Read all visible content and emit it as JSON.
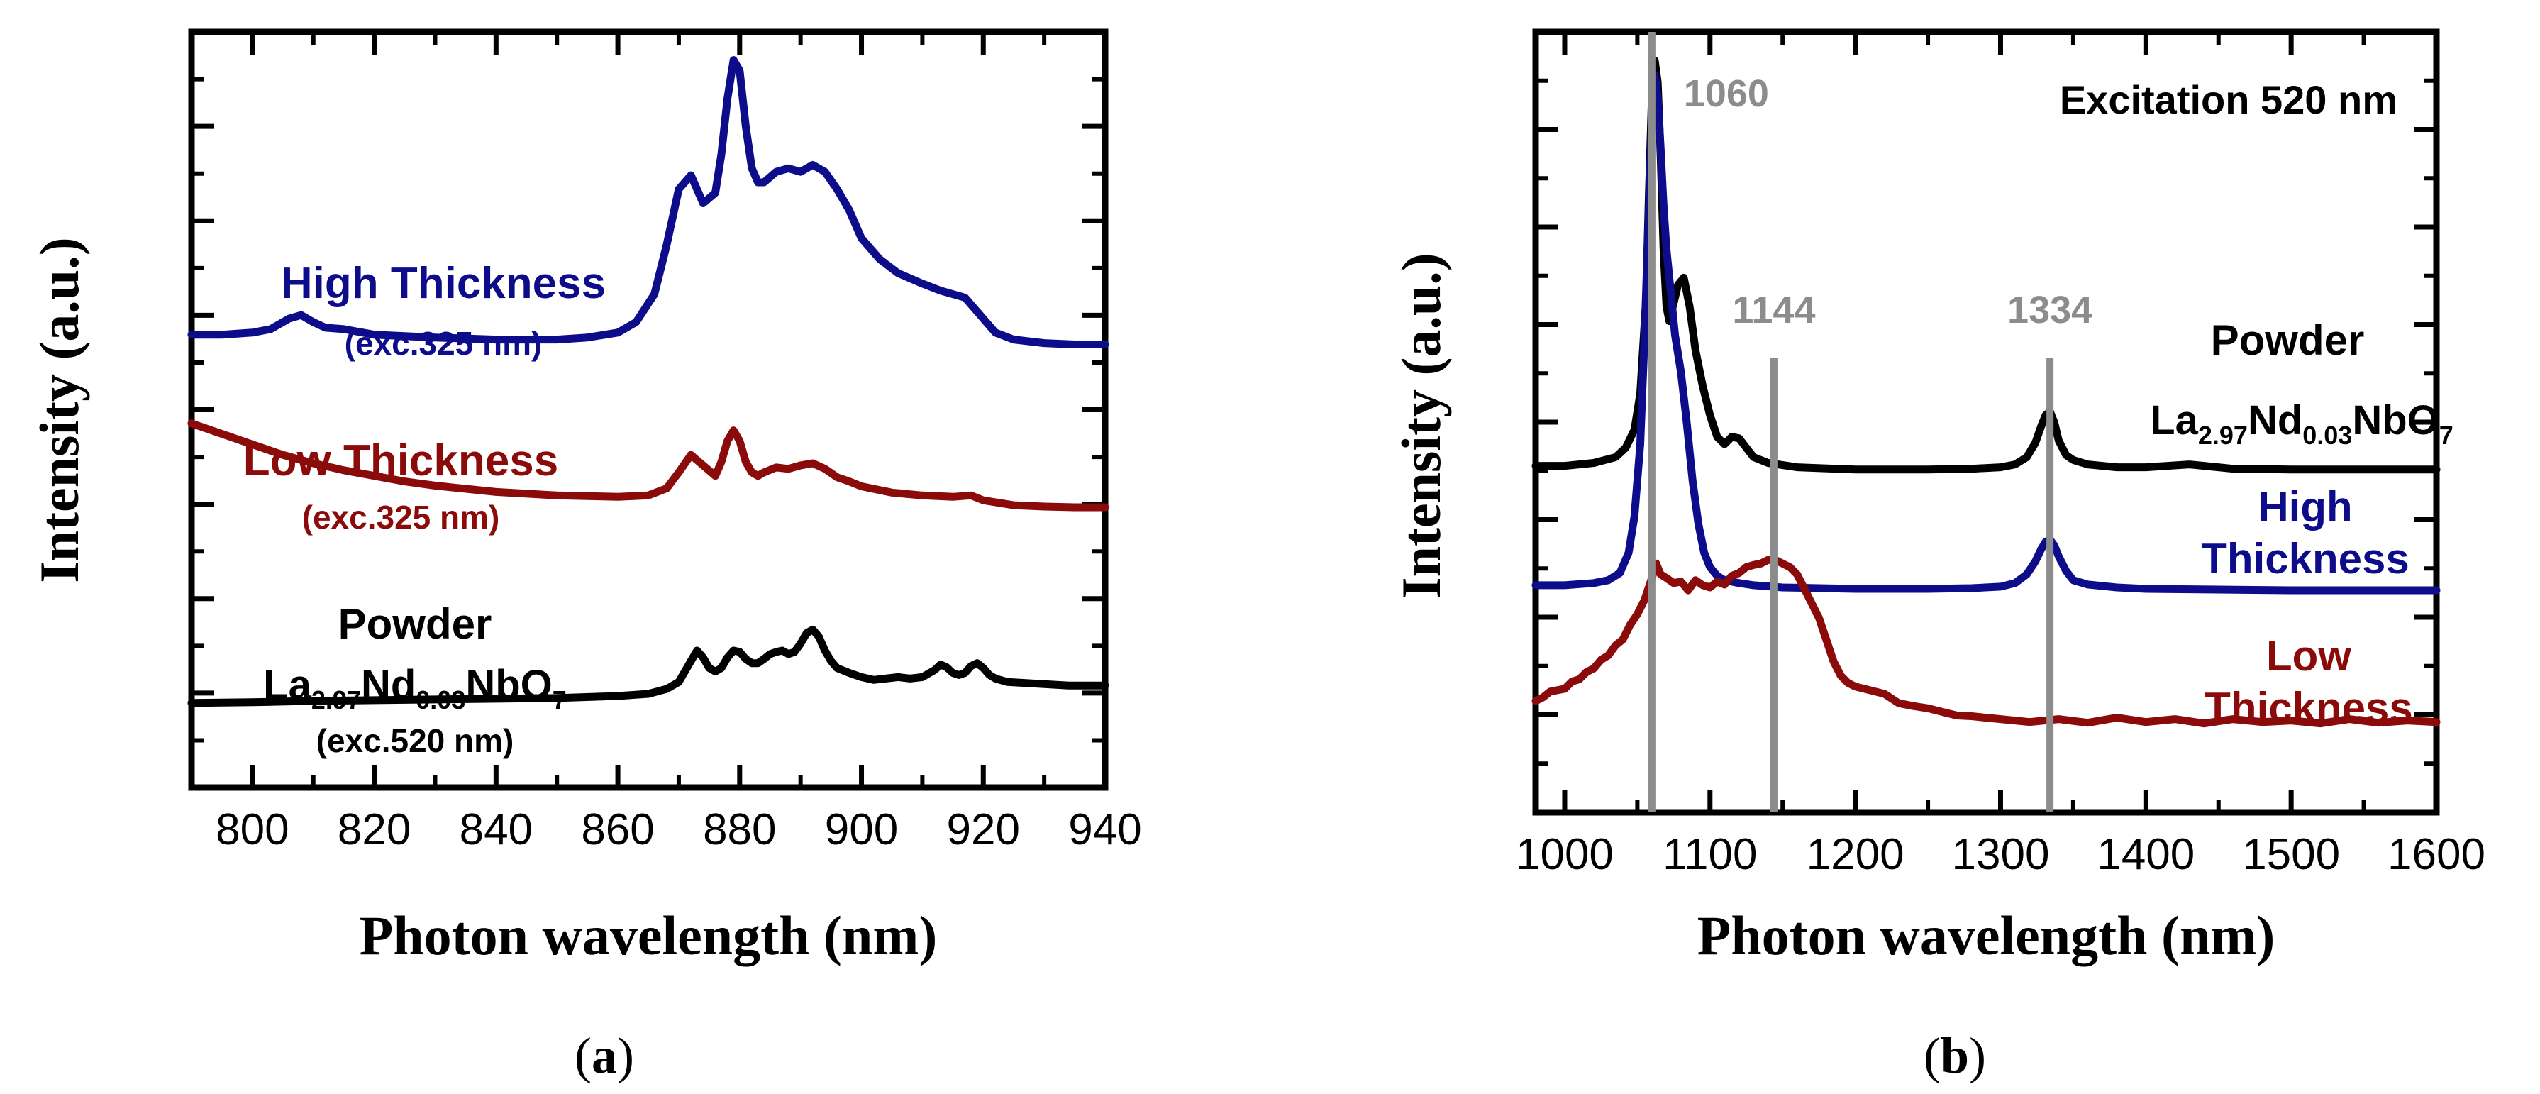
{
  "colors": {
    "high": "#0d0d8c",
    "low": "#8b0a0a",
    "powder": "#000000",
    "ref": "#8c8c8c"
  },
  "chart_data": [
    {
      "panel": "(a)",
      "panel_letter": "a",
      "type": "line",
      "xlabel": "Photon wavelength (nm)",
      "ylabel": "Intensity (a.u.)",
      "xlim": [
        790,
        940
      ],
      "ylim": [
        0,
        1
      ],
      "xticks": [
        800,
        820,
        840,
        860,
        880,
        900,
        920,
        940
      ],
      "xtick_labels": [
        "800",
        "820",
        "840",
        "860",
        "880",
        "900",
        "920",
        "940"
      ],
      "annotations": {
        "high_title": "High Thickness",
        "high_exc": "(exc.325 nm)",
        "low_title": "Low Thickness",
        "low_exc": "(exc.325 nm)",
        "powder_title": "Powder",
        "formula": {
          "la": "La",
          "la_sub": "2.97",
          "nd": "Nd",
          "nd_sub": "0.03",
          "nbo": "NbO",
          "o_sub": "7"
        },
        "powder_exc": "(exc.520 nm)"
      },
      "series": [
        {
          "name": "High Thickness",
          "color": "#0d0d8c",
          "x": [
            790,
            795,
            800,
            803,
            806,
            808,
            810,
            812,
            815,
            820,
            830,
            840,
            850,
            855,
            860,
            863,
            866,
            868,
            870,
            872,
            874,
            876,
            877,
            878,
            879,
            880,
            881,
            882,
            883,
            884,
            886,
            888,
            890,
            892,
            894,
            896,
            898,
            900,
            903,
            906,
            910,
            913,
            915,
            917,
            919,
            922,
            925,
            930,
            935,
            940
          ],
          "y": [
            0.582,
            0.582,
            0.585,
            0.59,
            0.605,
            0.61,
            0.6,
            0.592,
            0.59,
            0.582,
            0.578,
            0.575,
            0.575,
            0.578,
            0.585,
            0.6,
            0.64,
            0.71,
            0.79,
            0.81,
            0.77,
            0.785,
            0.84,
            0.92,
            0.975,
            0.96,
            0.88,
            0.82,
            0.8,
            0.8,
            0.815,
            0.82,
            0.815,
            0.825,
            0.815,
            0.79,
            0.76,
            0.72,
            0.69,
            0.67,
            0.655,
            0.645,
            0.64,
            0.635,
            0.615,
            0.585,
            0.575,
            0.57,
            0.568,
            0.568
          ]
        },
        {
          "name": "Low Thickness",
          "color": "#8b0a0a",
          "x": [
            790,
            795,
            800,
            805,
            810,
            815,
            820,
            825,
            830,
            840,
            850,
            860,
            865,
            868,
            870,
            872,
            874,
            876,
            877,
            878,
            879,
            880,
            881,
            882,
            883,
            884,
            886,
            888,
            890,
            892,
            894,
            896,
            898,
            900,
            905,
            910,
            915,
            918,
            920,
            925,
            930,
            935,
            940
          ],
          "y": [
            0.455,
            0.44,
            0.425,
            0.41,
            0.398,
            0.388,
            0.38,
            0.372,
            0.366,
            0.357,
            0.352,
            0.35,
            0.352,
            0.362,
            0.385,
            0.41,
            0.395,
            0.38,
            0.4,
            0.43,
            0.445,
            0.43,
            0.4,
            0.385,
            0.38,
            0.385,
            0.392,
            0.39,
            0.395,
            0.398,
            0.39,
            0.378,
            0.372,
            0.365,
            0.356,
            0.352,
            0.35,
            0.352,
            0.345,
            0.338,
            0.336,
            0.335,
            0.335
          ]
        },
        {
          "name": "Powder La2.97Nd0.03NbO7",
          "color": "#000000",
          "x": [
            790,
            800,
            810,
            820,
            830,
            840,
            850,
            860,
            865,
            868,
            870,
            872,
            873,
            874,
            875,
            876,
            877,
            878,
            879,
            880,
            881,
            882,
            883,
            884,
            885,
            886,
            887,
            888,
            889,
            890,
            891,
            892,
            893,
            894,
            895,
            896,
            898,
            900,
            902,
            904,
            906,
            908,
            910,
            912,
            913,
            914,
            915,
            916,
            917,
            918,
            919,
            920,
            921,
            922,
            924,
            926,
            928,
            930,
            932,
            934,
            936,
            938,
            940
          ],
          "y": [
            0.055,
            0.056,
            0.058,
            0.059,
            0.06,
            0.061,
            0.062,
            0.065,
            0.068,
            0.075,
            0.085,
            0.115,
            0.13,
            0.12,
            0.105,
            0.1,
            0.105,
            0.12,
            0.13,
            0.128,
            0.118,
            0.112,
            0.112,
            0.118,
            0.125,
            0.128,
            0.13,
            0.125,
            0.128,
            0.14,
            0.155,
            0.16,
            0.15,
            0.13,
            0.115,
            0.105,
            0.098,
            0.092,
            0.088,
            0.09,
            0.092,
            0.09,
            0.092,
            0.102,
            0.11,
            0.106,
            0.098,
            0.095,
            0.098,
            0.108,
            0.112,
            0.105,
            0.095,
            0.09,
            0.085,
            0.084,
            0.083,
            0.082,
            0.081,
            0.08,
            0.08,
            0.08,
            0.08
          ]
        }
      ]
    },
    {
      "panel": "(b)",
      "panel_letter": "b",
      "type": "line",
      "xlabel": "Photon wavelength (nm)",
      "ylabel": "Intensity (a.u.)",
      "xlim": [
        980,
        1600
      ],
      "ylim": [
        0,
        1
      ],
      "xticks": [
        1000,
        1100,
        1200,
        1300,
        1400,
        1500,
        1600
      ],
      "xtick_labels": [
        "1000",
        "1100",
        "1200",
        "1300",
        "1400",
        "1500",
        "1600"
      ],
      "title": "Excitation 520 nm",
      "reference_lines": [
        {
          "x": 1060,
          "label": "1060"
        },
        {
          "x": 1144,
          "label": "1144"
        },
        {
          "x": 1334,
          "label": "1334"
        }
      ],
      "annotations": {
        "powder_title": "Powder",
        "formula": {
          "la": "La",
          "la_sub": "2.97",
          "nd": "Nd",
          "nd_sub": "0.03",
          "nbo": "NbO",
          "o_sub": "7"
        },
        "high_line1": "High",
        "high_line2": "Thickness",
        "low_line1": "Low",
        "low_line2": "Thickness"
      },
      "series": [
        {
          "name": "Powder La2.97Nd0.03NbO7",
          "color": "#000000",
          "x": [
            980,
            1000,
            1020,
            1035,
            1042,
            1048,
            1052,
            1056,
            1058,
            1060,
            1062,
            1064,
            1066,
            1068,
            1070,
            1072,
            1075,
            1078,
            1082,
            1086,
            1090,
            1095,
            1100,
            1105,
            1110,
            1115,
            1120,
            1125,
            1130,
            1140,
            1160,
            1200,
            1250,
            1280,
            1300,
            1310,
            1318,
            1324,
            1328,
            1331,
            1334,
            1337,
            1340,
            1345,
            1350,
            1360,
            1380,
            1400,
            1430,
            1440,
            1460,
            1500,
            1550,
            1600
          ],
          "y": [
            0.42,
            0.42,
            0.424,
            0.432,
            0.445,
            0.47,
            0.52,
            0.65,
            0.8,
            0.93,
            0.98,
            0.95,
            0.85,
            0.72,
            0.64,
            0.62,
            0.645,
            0.67,
            0.68,
            0.64,
            0.58,
            0.53,
            0.49,
            0.46,
            0.45,
            0.46,
            0.458,
            0.445,
            0.432,
            0.424,
            0.418,
            0.415,
            0.415,
            0.416,
            0.418,
            0.422,
            0.432,
            0.452,
            0.475,
            0.49,
            0.495,
            0.48,
            0.455,
            0.435,
            0.428,
            0.422,
            0.418,
            0.418,
            0.422,
            0.42,
            0.416,
            0.415,
            0.415,
            0.415
          ]
        },
        {
          "name": "High Thickness",
          "color": "#0d0d8c",
          "x": [
            980,
            1000,
            1020,
            1030,
            1038,
            1044,
            1048,
            1052,
            1055,
            1058,
            1060,
            1062,
            1064,
            1066,
            1068,
            1070,
            1073,
            1076,
            1080,
            1084,
            1088,
            1092,
            1096,
            1100,
            1105,
            1110,
            1120,
            1130,
            1150,
            1200,
            1250,
            1280,
            1300,
            1310,
            1318,
            1324,
            1328,
            1331,
            1334,
            1337,
            1340,
            1345,
            1350,
            1360,
            1380,
            1400,
            1450,
            1500,
            1550,
            1600
          ],
          "y": [
            0.255,
            0.255,
            0.258,
            0.262,
            0.272,
            0.3,
            0.35,
            0.45,
            0.6,
            0.78,
            0.9,
            0.96,
            0.93,
            0.86,
            0.78,
            0.72,
            0.66,
            0.6,
            0.55,
            0.48,
            0.4,
            0.34,
            0.3,
            0.28,
            0.268,
            0.262,
            0.258,
            0.255,
            0.252,
            0.25,
            0.25,
            0.251,
            0.253,
            0.258,
            0.27,
            0.288,
            0.305,
            0.315,
            0.318,
            0.31,
            0.295,
            0.275,
            0.262,
            0.256,
            0.252,
            0.25,
            0.249,
            0.248,
            0.248,
            0.248
          ]
        },
        {
          "name": "Low Thickness",
          "color": "#8b0a0a",
          "x": [
            980,
            985,
            990,
            1000,
            1005,
            1010,
            1015,
            1020,
            1025,
            1030,
            1035,
            1040,
            1045,
            1050,
            1055,
            1060,
            1063,
            1066,
            1070,
            1075,
            1080,
            1085,
            1090,
            1095,
            1100,
            1105,
            1110,
            1115,
            1120,
            1125,
            1130,
            1135,
            1140,
            1145,
            1150,
            1155,
            1160,
            1165,
            1170,
            1175,
            1180,
            1185,
            1190,
            1195,
            1200,
            1210,
            1220,
            1230,
            1240,
            1250,
            1260,
            1270,
            1280,
            1290,
            1300,
            1320,
            1340,
            1360,
            1380,
            1400,
            1420,
            1440,
            1460,
            1480,
            1500,
            1520,
            1540,
            1560,
            1580,
            1600
          ],
          "y": [
            0.095,
            0.1,
            0.108,
            0.112,
            0.122,
            0.125,
            0.135,
            0.14,
            0.152,
            0.158,
            0.172,
            0.18,
            0.2,
            0.215,
            0.235,
            0.265,
            0.285,
            0.27,
            0.265,
            0.258,
            0.26,
            0.248,
            0.262,
            0.255,
            0.252,
            0.26,
            0.256,
            0.268,
            0.272,
            0.28,
            0.283,
            0.285,
            0.29,
            0.29,
            0.285,
            0.28,
            0.27,
            0.25,
            0.23,
            0.21,
            0.18,
            0.15,
            0.13,
            0.12,
            0.115,
            0.11,
            0.105,
            0.092,
            0.088,
            0.085,
            0.08,
            0.075,
            0.074,
            0.072,
            0.07,
            0.066,
            0.07,
            0.065,
            0.072,
            0.066,
            0.07,
            0.064,
            0.07,
            0.066,
            0.068,
            0.064,
            0.07,
            0.065,
            0.068,
            0.066
          ]
        }
      ]
    }
  ]
}
